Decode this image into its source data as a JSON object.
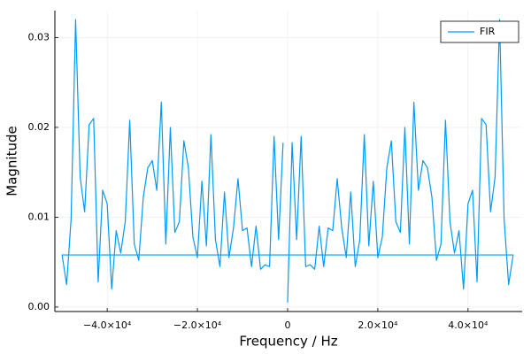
{
  "chart_data": {
    "type": "line",
    "xlabel": "Frequency  / Hz",
    "ylabel": "Magnitude",
    "x": [
      0,
      1000,
      2000,
      3000,
      4000,
      5000,
      6000,
      7000,
      8000,
      9000,
      10000,
      11000,
      12000,
      13000,
      14000,
      15000,
      16000,
      17000,
      18000,
      19000,
      20000,
      21000,
      22000,
      23000,
      24000,
      25000,
      26000,
      27000,
      28000,
      29000,
      30000,
      31000,
      32000,
      33000,
      34000,
      35000,
      36000,
      37000,
      38000,
      39000,
      40000,
      41000,
      42000,
      43000,
      44000,
      45000,
      46000,
      47000,
      48000,
      49000,
      50000,
      -50000,
      -49000,
      -48000,
      -47000,
      -46000,
      -45000,
      -44000,
      -43000,
      -42000,
      -41000,
      -40000,
      -39000,
      -38000,
      -37000,
      -36000,
      -35000,
      -34000,
      -33000,
      -32000,
      -31000,
      -30000,
      -29000,
      -28000,
      -27000,
      -26000,
      -25000,
      -24000,
      -23000,
      -22000,
      -21000,
      -20000,
      -19000,
      -18000,
      -17000,
      -16000,
      -15000,
      -14000,
      -13000,
      -12000,
      -11000,
      -10000,
      -9000,
      -8000,
      -7000,
      -6000,
      -5000,
      -4000,
      -3000,
      -2000,
      -1000
    ],
    "series": [
      {
        "name": "FIR",
        "color": "#009afa",
        "values": [
          0.0005,
          0.0183,
          0.0075,
          0.019,
          0.0045,
          0.0047,
          0.0042,
          0.009,
          0.0045,
          0.0088,
          0.0085,
          0.0143,
          0.0088,
          0.0055,
          0.0128,
          0.0045,
          0.0075,
          0.0192,
          0.0068,
          0.014,
          0.0055,
          0.0078,
          0.0155,
          0.0185,
          0.0095,
          0.0083,
          0.02,
          0.007,
          0.0228,
          0.013,
          0.0163,
          0.0155,
          0.0122,
          0.0052,
          0.007,
          0.0208,
          0.0095,
          0.006,
          0.0085,
          0.002,
          0.0115,
          0.013,
          0.0028,
          0.021,
          0.0203,
          0.0106,
          0.0145,
          0.032,
          0.0098,
          0.0025,
          0.0058,
          0.0058,
          0.0025,
          0.0098,
          0.032,
          0.0145,
          0.0106,
          0.0203,
          0.021,
          0.0028,
          0.013,
          0.0115,
          0.002,
          0.0085,
          0.006,
          0.0095,
          0.0208,
          0.007,
          0.0052,
          0.0122,
          0.0155,
          0.0163,
          0.013,
          0.0228,
          0.007,
          0.02,
          0.0083,
          0.0095,
          0.0185,
          0.0155,
          0.0078,
          0.0055,
          0.014,
          0.0068,
          0.0192,
          0.0075,
          0.0045,
          0.0128,
          0.0055,
          0.0088,
          0.0143,
          0.0085,
          0.0088,
          0.0045,
          0.009,
          0.0042,
          0.0047,
          0.0045,
          0.019,
          0.0075,
          0.0183
        ]
      }
    ],
    "xlim": [
      -51600,
      52000
    ],
    "xticks": [
      {
        "value": -40000,
        "label": "−4.0×10⁴"
      },
      {
        "value": -20000,
        "label": "−2.0×10⁴"
      },
      0,
      {
        "value": 20000,
        "label": "2.0×10⁴"
      },
      {
        "value": 40000,
        "label": "4.0×10⁴"
      }
    ],
    "ylim": [
      -0.0005,
      0.033
    ],
    "yticks": [
      {
        "value": 0,
        "label": "0.00"
      },
      {
        "value": 0.01,
        "label": "0.01"
      },
      {
        "value": 0.02,
        "label": "0.02"
      },
      {
        "value": 0.03,
        "label": "0.03"
      }
    ],
    "grid": true,
    "legend": "top-right"
  }
}
